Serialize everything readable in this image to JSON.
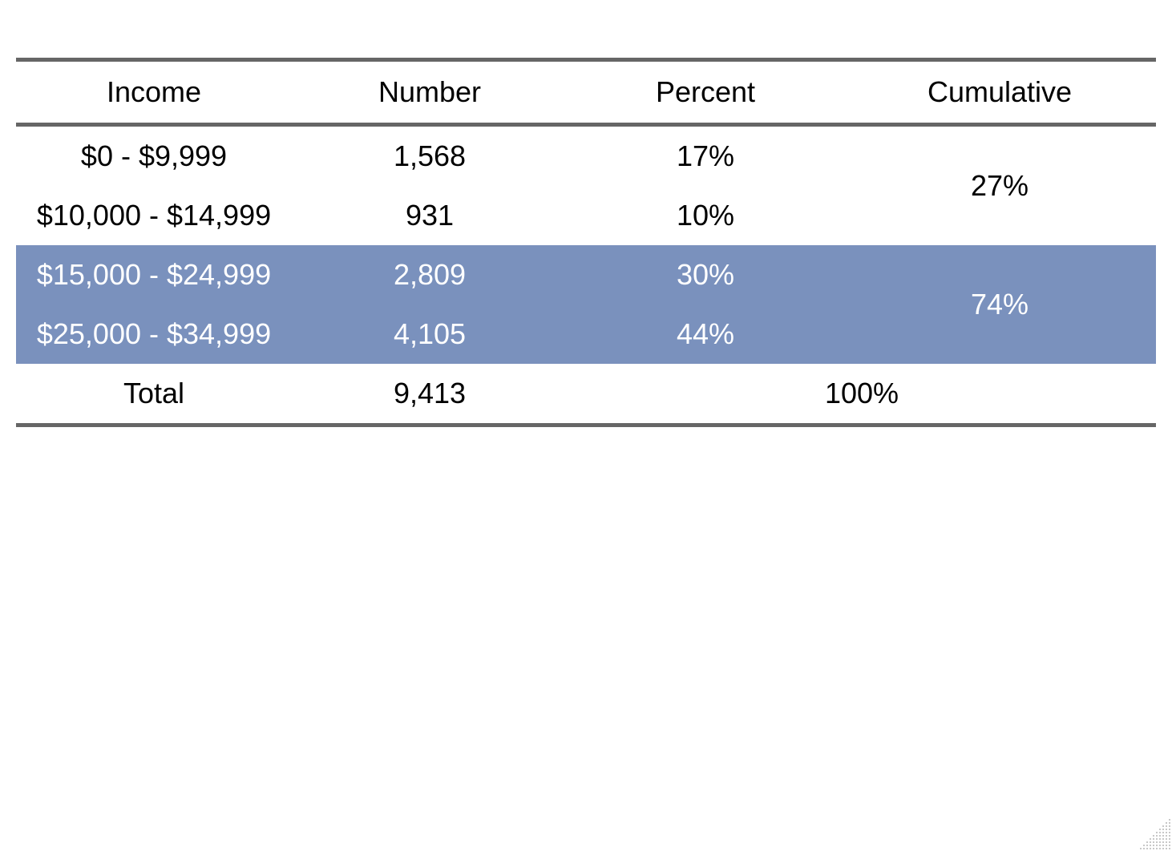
{
  "table": {
    "headers": {
      "income": "Income",
      "number": "Number",
      "percent": "Percent",
      "cumulative": "Cumulative"
    },
    "groups": [
      {
        "highlighted": false,
        "cumulative": "27%",
        "rows": [
          {
            "income": "$0 - $9,999",
            "number": "1,568",
            "percent": "17%"
          },
          {
            "income": "$10,000 - $14,999",
            "number": "931",
            "percent": "10%"
          }
        ]
      },
      {
        "highlighted": true,
        "cumulative": "74%",
        "rows": [
          {
            "income": "$15,000 - $24,999",
            "number": "2,809",
            "percent": "30%"
          },
          {
            "income": "$25,000 - $34,999",
            "number": "4,105",
            "percent": "44%"
          }
        ]
      }
    ],
    "total": {
      "label": "Total",
      "number": "9,413",
      "percent": "100%"
    }
  },
  "colors": {
    "highlight": "#7a91bd",
    "rule": "#666666"
  }
}
